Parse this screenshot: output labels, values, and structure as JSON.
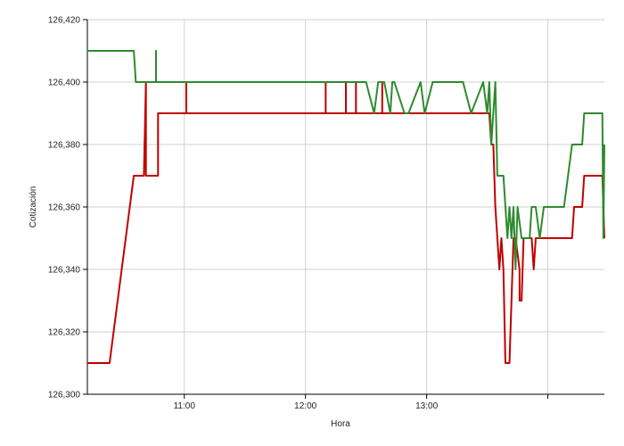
{
  "chart_data": {
    "type": "line",
    "x_label": "Hora",
    "y_label": "Cotización",
    "xlim": [
      612,
      868
    ],
    "xticks": [
      {
        "value": 660,
        "label": "11:00"
      },
      {
        "value": 720,
        "label": "12:00"
      },
      {
        "value": 780,
        "label": "13:00"
      },
      {
        "value": 840,
        "label": null
      }
    ],
    "ylim": [
      126.3,
      126.42
    ],
    "yticks": [
      {
        "value": 126.3,
        "label": "126,300"
      },
      {
        "value": 126.32,
        "label": "126,320"
      },
      {
        "value": 126.34,
        "label": "126,340"
      },
      {
        "value": 126.36,
        "label": "126,360"
      },
      {
        "value": 126.38,
        "label": "126,380"
      },
      {
        "value": 126.4,
        "label": "126,400"
      },
      {
        "value": 126.42,
        "label": "126,420"
      }
    ],
    "grid": true,
    "series": [
      {
        "color": "#c00000",
        "x": [
          612,
          623,
          635,
          640,
          641,
          641,
          647,
          647,
          661,
          661,
          661,
          730,
          730,
          730,
          740,
          740,
          740,
          745,
          745,
          745,
          758,
          758,
          758,
          811,
          812,
          813,
          814,
          816,
          817,
          818,
          819,
          821,
          822,
          823,
          824,
          826,
          826,
          827,
          828,
          832,
          833,
          834,
          852,
          853,
          857,
          858,
          867,
          868
        ],
        "values": [
          126.31,
          126.31,
          126.37,
          126.37,
          126.4,
          126.37,
          126.37,
          126.39,
          126.39,
          126.4,
          126.39,
          126.39,
          126.4,
          126.39,
          126.39,
          126.4,
          126.39,
          126.39,
          126.4,
          126.39,
          126.39,
          126.4,
          126.39,
          126.39,
          126.38,
          126.38,
          126.36,
          126.34,
          126.35,
          126.34,
          126.31,
          126.31,
          126.33,
          126.35,
          126.35,
          126.34,
          126.33,
          126.33,
          126.35,
          126.35,
          126.34,
          126.35,
          126.35,
          126.36,
          126.36,
          126.37,
          126.37,
          126.35
        ]
      },
      {
        "color": "#2e8b2e",
        "x": [
          612,
          635,
          636,
          646,
          646,
          646,
          750,
          754,
          756,
          759,
          762,
          763,
          764,
          769,
          771,
          777,
          779,
          783,
          798,
          802,
          808,
          810,
          811,
          812,
          814,
          815,
          818,
          820,
          821,
          822,
          823,
          824,
          825,
          827,
          831,
          832,
          834,
          836,
          838,
          848,
          850,
          852,
          857,
          858,
          867,
          867.5,
          868
        ],
        "values": [
          126.41,
          126.41,
          126.4,
          126.4,
          126.41,
          126.4,
          126.4,
          126.39,
          126.4,
          126.4,
          126.39,
          126.4,
          126.4,
          126.39,
          126.39,
          126.4,
          126.39,
          126.4,
          126.4,
          126.39,
          126.4,
          126.39,
          126.4,
          126.38,
          126.4,
          126.37,
          126.37,
          126.35,
          126.36,
          126.35,
          126.36,
          126.34,
          126.36,
          126.35,
          126.35,
          126.36,
          126.36,
          126.35,
          126.36,
          126.36,
          126.37,
          126.38,
          126.38,
          126.39,
          126.39,
          126.35,
          126.38
        ]
      }
    ]
  }
}
